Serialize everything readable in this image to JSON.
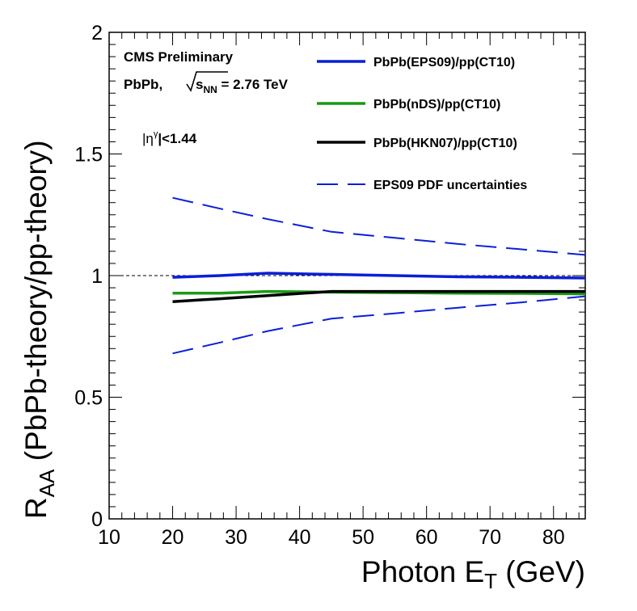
{
  "chart_data": {
    "type": "line",
    "xlabel": "Photon E",
    "xlabel_sub": "T",
    "xlabel_unit": " (GeV)",
    "ylabel": "R",
    "ylabel_sub": "AA",
    "ylabel_rest": " (PbPb-theory/pp-theory)",
    "xlim": [
      10,
      85
    ],
    "ylim": [
      0,
      2
    ],
    "x_ticks": [
      10,
      20,
      30,
      40,
      50,
      60,
      70,
      80
    ],
    "y_ticks": [
      0,
      0.5,
      1,
      1.5,
      2
    ],
    "y_tick_labels": [
      "0",
      "0.5",
      "1",
      "1.5",
      "2"
    ],
    "reference_line": 1,
    "annotations": {
      "experiment": "CMS Preliminary",
      "system": "PbPb,",
      "energy_sqrt": "s",
      "energy_sub": "NN",
      "energy_val": " = 2.76 TeV",
      "eta_pre": "|η",
      "eta_sup": "γ",
      "eta_post": "|<1.44"
    },
    "legend_position": "top-right",
    "series": [
      {
        "name": "PbPb(EPS09)/pp(CT10)",
        "color": "#0a1fd8",
        "style": "solid",
        "x": [
          20,
          27.5,
          35,
          45,
          55,
          65,
          75,
          85
        ],
        "y": [
          0.993,
          1.0,
          1.01,
          1.005,
          1.0,
          0.995,
          0.993,
          0.99
        ]
      },
      {
        "name": "PbPb(nDS)/pp(CT10)",
        "color": "#1a9a14",
        "style": "solid",
        "x": [
          20,
          27.5,
          35,
          45,
          55,
          65,
          75,
          85
        ],
        "y": [
          0.928,
          0.928,
          0.935,
          0.932,
          0.93,
          0.928,
          0.927,
          0.925
        ]
      },
      {
        "name": "PbPb(HKN07)/pp(CT10)",
        "color": "#000000",
        "style": "solid",
        "x": [
          20,
          27.5,
          35,
          45,
          55,
          65,
          75,
          85
        ],
        "y": [
          0.893,
          0.905,
          0.918,
          0.935,
          0.935,
          0.935,
          0.935,
          0.935
        ]
      },
      {
        "name": "EPS09 PDF uncertainties",
        "color": "#0a1fd8",
        "style": "dashed",
        "x": [
          20,
          27.5,
          35,
          45,
          55,
          65,
          75,
          85
        ],
        "y": [
          1.32,
          1.275,
          1.232,
          1.18,
          1.155,
          1.13,
          1.108,
          1.085
        ]
      },
      {
        "name": "",
        "color": "#0a1fd8",
        "style": "dashed",
        "x": [
          20,
          27.5,
          35,
          45,
          55,
          65,
          75,
          85
        ],
        "y": [
          0.68,
          0.725,
          0.772,
          0.823,
          0.845,
          0.868,
          0.89,
          0.915
        ]
      }
    ]
  }
}
